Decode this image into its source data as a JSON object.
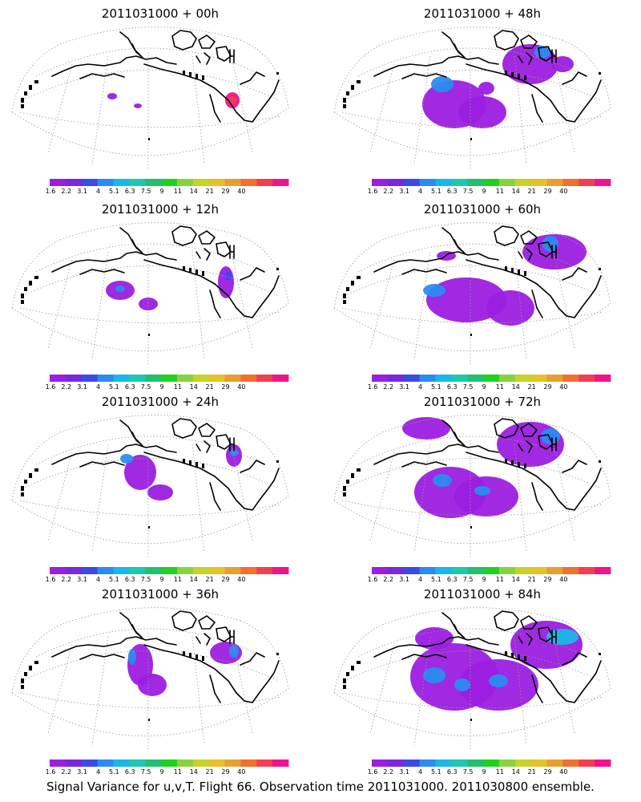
{
  "caption": "Signal Variance for u,v,T. Flight 66. Observation time 2011031000. 2011030800 ensemble.",
  "colorbar": {
    "labels": [
      "1.6",
      "2.2",
      "3.1",
      "4",
      "5.1",
      "6.3",
      "7.5",
      "9",
      "11",
      "14",
      "21",
      "29",
      "40"
    ],
    "colors": [
      "#9c1ee0",
      "#7a28d8",
      "#3c4ae6",
      "#2a8cf0",
      "#18b8e8",
      "#1ec8b0",
      "#22c070",
      "#1ed21e",
      "#8ad23c",
      "#c8d228",
      "#e6c228",
      "#e6a030",
      "#f07030",
      "#f04050",
      "#f0148c"
    ]
  },
  "panels": [
    {
      "title": "2011031000 + 00h"
    },
    {
      "title": "2011031000 + 48h"
    },
    {
      "title": "2011031000 + 12h"
    },
    {
      "title": "2011031000 + 60h"
    },
    {
      "title": "2011031000 + 24h"
    },
    {
      "title": "2011031000 + 72h"
    },
    {
      "title": "2011031000 + 36h"
    },
    {
      "title": "2011031000 + 84h"
    }
  ]
}
